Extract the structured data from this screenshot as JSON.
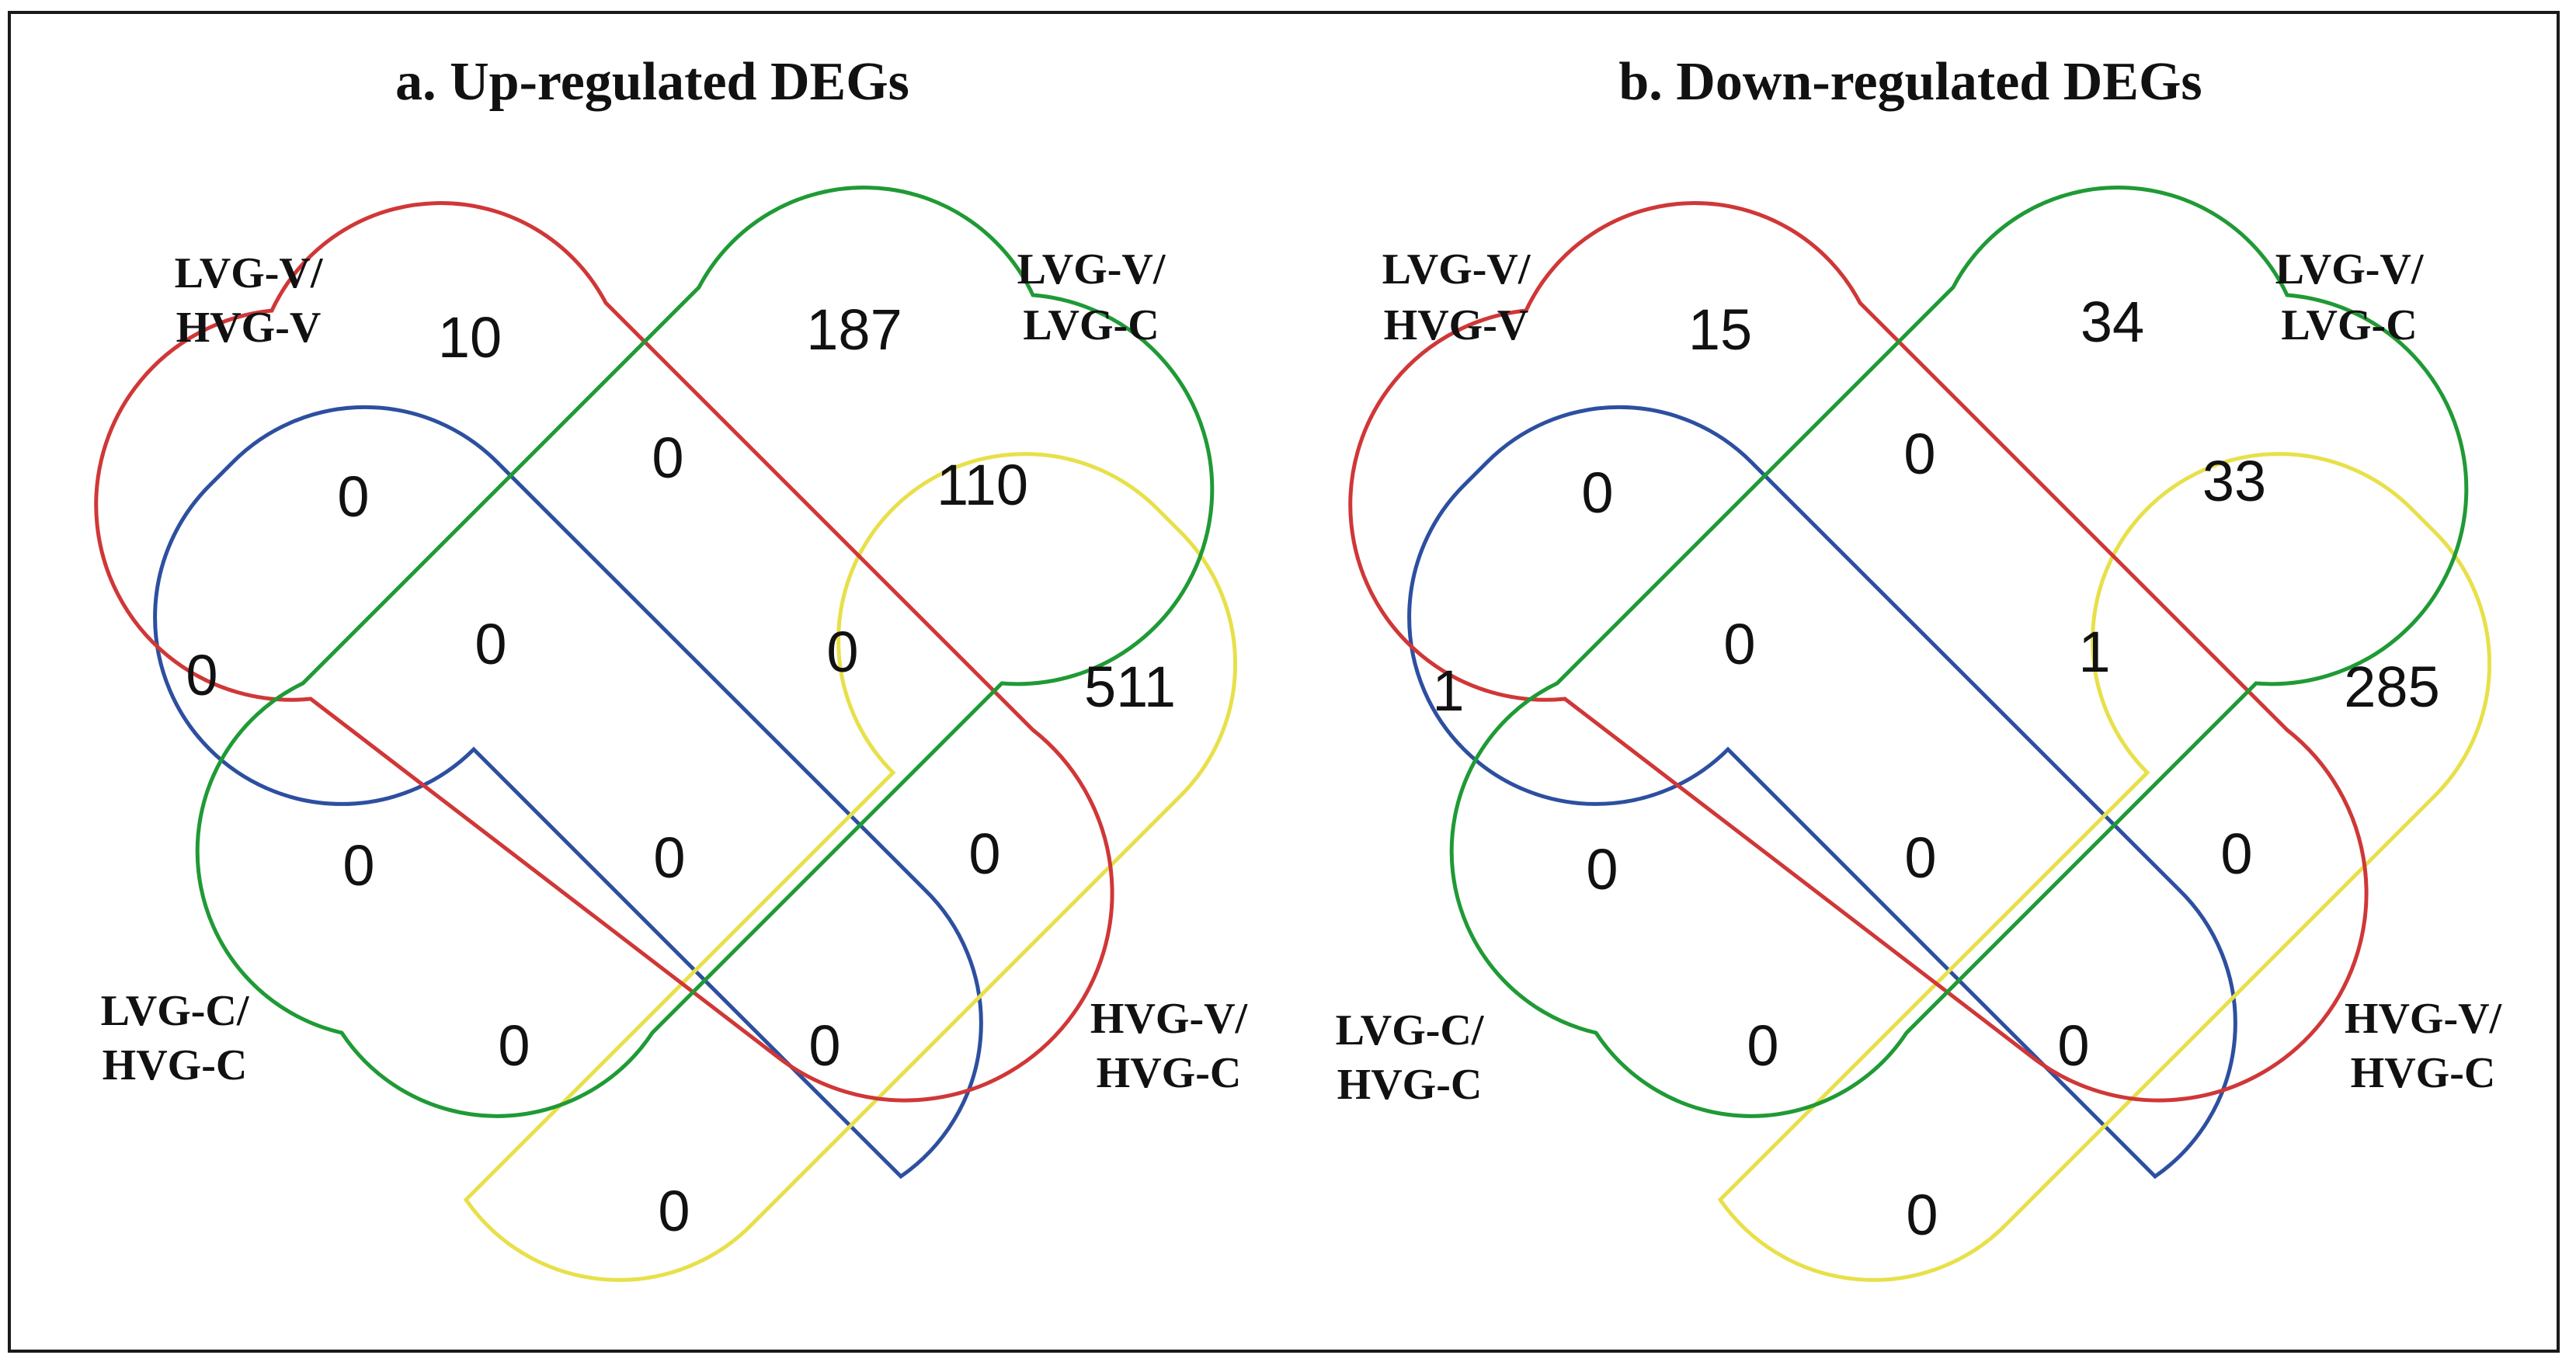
{
  "colors": {
    "set_red": "#d03737",
    "set_green": "#1f9a35",
    "set_blue": "#2d4fa0",
    "set_yellow": "#e8e04a",
    "border": "#1a1a1a"
  },
  "panels": [
    {
      "title": "a. Up-regulated DEGs",
      "sets": [
        {
          "label_line1": "LVG-V/",
          "label_line2": "HVG-V"
        },
        {
          "label_line1": "LVG-V/",
          "label_line2": "LVG-C"
        },
        {
          "label_line1": "LVG-C/",
          "label_line2": "HVG-C"
        },
        {
          "label_line1": "HVG-V/",
          "label_line2": "HVG-C"
        }
      ],
      "regions": {
        "red_only": "10",
        "green_only": "187",
        "blue_only": "0",
        "yellow_only": "511",
        "red_green": "0",
        "blue_red": "0",
        "green_yellow": "110",
        "blue_red_green": "0",
        "red_green_yellow": "0",
        "all": "0",
        "blue_green": "0",
        "red_yellow": "0",
        "blue_green_yellow": "0",
        "blue_red_yellow": "0",
        "blue_yellow": "0"
      }
    },
    {
      "title": "b. Down-regulated DEGs",
      "sets": [
        {
          "label_line1": "LVG-V/",
          "label_line2": "HVG-V"
        },
        {
          "label_line1": "LVG-V/",
          "label_line2": "LVG-C"
        },
        {
          "label_line1": "LVG-C/",
          "label_line2": "HVG-C"
        },
        {
          "label_line1": "HVG-V/",
          "label_line2": "HVG-C"
        }
      ],
      "regions": {
        "red_only": "15",
        "green_only": "34",
        "blue_only": "1",
        "yellow_only": "285",
        "red_green": "0",
        "blue_red": "0",
        "green_yellow": "33",
        "blue_red_green": "0",
        "red_green_yellow": "1",
        "all": "0",
        "blue_green": "0",
        "red_yellow": "0",
        "blue_green_yellow": "0",
        "blue_red_yellow": "0",
        "blue_yellow": "0"
      }
    }
  ]
}
